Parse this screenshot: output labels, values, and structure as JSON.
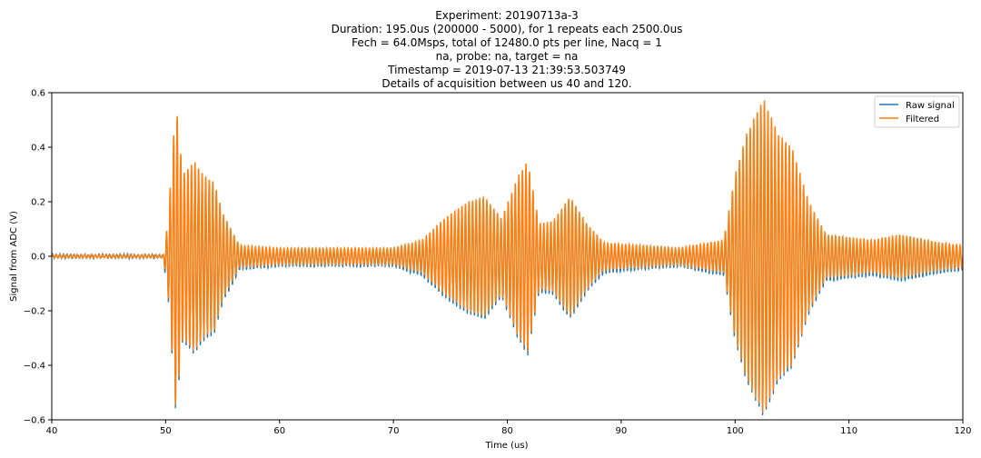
{
  "chart_data": {
    "type": "line",
    "title_lines": [
      "Experiment: 20190713a-3",
      "Duration: 195.0us (200000 - 5000), for 1 repeats each 2500.0us",
      "Fech = 64.0Msps, total of 12480.0 pts per line, Nacq = 1",
      "na, probe: na, target = na",
      "Timestamp = 2019-07-13 21:39:53.503749",
      "Details of acquisition between us 40 and 120."
    ],
    "xlabel": "Time (us)",
    "ylabel": "Signal from ADC (V)",
    "xlim": [
      40,
      120
    ],
    "ylim": [
      -0.6,
      0.6
    ],
    "xticks": [
      40,
      50,
      60,
      70,
      80,
      90,
      100,
      110,
      120
    ],
    "yticks": [
      -0.6,
      -0.4,
      -0.2,
      0.0,
      0.2,
      0.4,
      0.6
    ],
    "ytick_labels": [
      "−0.6",
      "−0.4",
      "−0.2",
      "0.0",
      "0.2",
      "0.4",
      "0.6"
    ],
    "legend_position": "top-right",
    "series": [
      {
        "name": "Raw signal",
        "color": "#1f77b4",
        "baseline_offset": -0.012,
        "noise_amplitude": 0.006
      },
      {
        "name": "Filtered",
        "color": "#ff7f0e",
        "baseline_offset": 0.0,
        "noise_amplitude": 0.0
      }
    ],
    "carrier_frequency_mhz": 3.2,
    "envelope_peaks": [
      {
        "t": 40.0,
        "amp": 0.006
      },
      {
        "t": 49.8,
        "amp": 0.006
      },
      {
        "t": 50.2,
        "amp": 0.13
      },
      {
        "t": 50.9,
        "amp": 0.57
      },
      {
        "t": 51.5,
        "amp": 0.3
      },
      {
        "t": 52.5,
        "amp": 0.35
      },
      {
        "t": 53.3,
        "amp": 0.3
      },
      {
        "t": 54.3,
        "amp": 0.27
      },
      {
        "t": 55.0,
        "amp": 0.16
      },
      {
        "t": 56.5,
        "amp": 0.04
      },
      {
        "t": 60.0,
        "amp": 0.03
      },
      {
        "t": 70.0,
        "amp": 0.03
      },
      {
        "t": 72.5,
        "amp": 0.06
      },
      {
        "t": 74.5,
        "amp": 0.14
      },
      {
        "t": 76.5,
        "amp": 0.2
      },
      {
        "t": 78.0,
        "amp": 0.22
      },
      {
        "t": 79.5,
        "amp": 0.14
      },
      {
        "t": 81.0,
        "amp": 0.3
      },
      {
        "t": 81.8,
        "amp": 0.35
      },
      {
        "t": 82.8,
        "amp": 0.12
      },
      {
        "t": 84.0,
        "amp": 0.13
      },
      {
        "t": 85.5,
        "amp": 0.22
      },
      {
        "t": 87.0,
        "amp": 0.12
      },
      {
        "t": 88.5,
        "amp": 0.05
      },
      {
        "t": 95.0,
        "amp": 0.03
      },
      {
        "t": 99.0,
        "amp": 0.06
      },
      {
        "t": 100.0,
        "amp": 0.3
      },
      {
        "t": 101.0,
        "amp": 0.45
      },
      {
        "t": 102.5,
        "amp": 0.58
      },
      {
        "t": 103.8,
        "amp": 0.45
      },
      {
        "t": 105.0,
        "amp": 0.4
      },
      {
        "t": 106.5,
        "amp": 0.2
      },
      {
        "t": 108.0,
        "amp": 0.08
      },
      {
        "t": 110.0,
        "amp": 0.07
      },
      {
        "t": 112.0,
        "amp": 0.06
      },
      {
        "t": 114.5,
        "amp": 0.08
      },
      {
        "t": 118.0,
        "amp": 0.05
      },
      {
        "t": 120.0,
        "amp": 0.04
      }
    ]
  }
}
